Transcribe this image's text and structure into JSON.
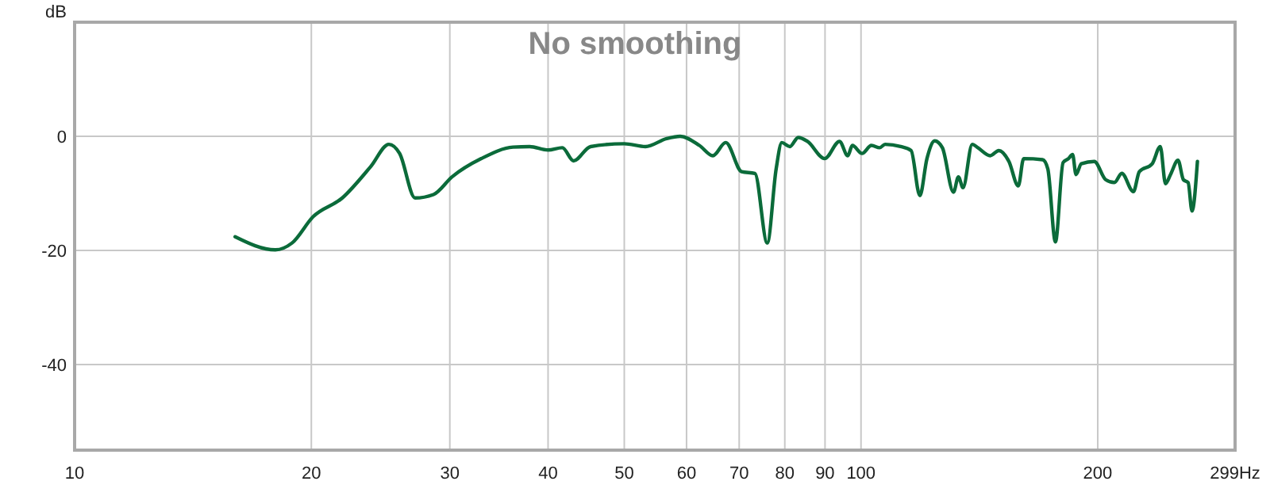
{
  "chart_data": {
    "type": "line",
    "title": "No smoothing",
    "ylabel": "dB",
    "log": "x",
    "grid": true,
    "marker": "none",
    "line_style": "solid",
    "xlim": [
      10,
      299
    ],
    "xticks": [
      10,
      20,
      30,
      40,
      50,
      60,
      70,
      80,
      90,
      100,
      200,
      {
        "value": 299,
        "label": "299Hz"
      }
    ],
    "ylim": [
      -55,
      20
    ],
    "yticks": [
      -40,
      -20,
      0
    ],
    "series": [
      {
        "color": "#0b6b3a",
        "x": [
          16.0,
          18.0,
          18.9,
          20.1,
          21.9,
          23.8,
          25.1,
          25.9,
          27.1,
          28.6,
          30.2,
          32.9,
          36.1,
          37.9,
          40.0,
          41.7,
          43.1,
          45.3,
          50.0,
          53.2,
          56.6,
          58.9,
          62.3,
          64.8,
          67.3,
          70.5,
          73.3,
          76.0,
          78.0,
          79.3,
          81.2,
          83.2,
          85.5,
          89.9,
          93.9,
          96.2,
          97.5,
          100.3,
          103.1,
          105.6,
          107.3,
          112.3,
          115.8,
          118.8,
          121.3,
          124.1,
          126.9,
          131.1,
          133.0,
          134.8,
          138.5,
          140.8,
          146.0,
          149.7,
          154.2,
          158.5,
          161.0,
          170.2,
          172.8,
          176.7,
          180.7,
          183.6,
          185.8,
          187.7,
          190.6,
          198.0,
          204.7,
          210.0,
          214.6,
          222.0,
          225.9,
          234.6,
          240.2,
          243.9,
          247.5,
          253.0,
          257.0,
          260.6,
          263.6,
          267.8
        ],
        "values": [
          -17.6,
          -19.9,
          -18.7,
          -14.1,
          -10.8,
          -5.3,
          -1.4,
          -3.0,
          -10.8,
          -10.2,
          -7.1,
          -3.9,
          -1.9,
          -1.8,
          -2.4,
          -2.0,
          -4.3,
          -1.8,
          -1.3,
          -1.8,
          -0.4,
          0,
          -1.6,
          -3.4,
          -1.1,
          -6.2,
          -6.5,
          -18.7,
          -5.7,
          -1.1,
          -1.8,
          -0.2,
          -0.9,
          -3.9,
          -0.9,
          -3.4,
          -1.6,
          -3.0,
          -1.6,
          -2.0,
          -1.4,
          -1.8,
          -2.5,
          -10.4,
          -3.9,
          -0.8,
          -2.0,
          -9.8,
          -7.1,
          -9.0,
          -1.4,
          -2.0,
          -3.4,
          -2.5,
          -4.4,
          -8.7,
          -3.9,
          -4.1,
          -5.7,
          -18.5,
          -4.6,
          -3.9,
          -3.2,
          -6.7,
          -4.8,
          -4.4,
          -7.6,
          -8.1,
          -6.5,
          -9.7,
          -6.2,
          -4.8,
          -1.8,
          -8.3,
          -6.7,
          -4.2,
          -7.6,
          -8.1,
          -13.1,
          -4.4
        ]
      }
    ]
  }
}
